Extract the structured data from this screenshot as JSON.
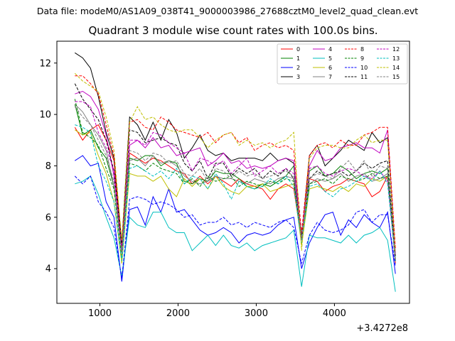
{
  "suptitle": "Data file: modeM0/AS1A09_038T41_9000003986_27688cztM0_level2_quad_clean.evt",
  "chart_data": {
    "type": "line",
    "title": "Quadrant 3 module wise count rates with 100.0s bins.",
    "xlabel": "",
    "ylabel": "",
    "x_offset_label": "+3.4272e8",
    "xlim": [
      450,
      4960
    ],
    "ylim": [
      2.65,
      12.85
    ],
    "xticks": [
      1000,
      2000,
      3000,
      4000
    ],
    "xtick_labels": [
      "1000",
      "2000",
      "3000",
      "4000"
    ],
    "yticks": [
      4,
      6,
      8,
      10,
      12
    ],
    "ytick_labels": [
      "4",
      "6",
      "8",
      "10",
      "12"
    ],
    "grid": false,
    "legend_location": "top-right",
    "x": [
      680,
      780,
      880,
      980,
      1080,
      1180,
      1280,
      1380,
      1480,
      1580,
      1680,
      1780,
      1880,
      1980,
      2080,
      2180,
      2280,
      2380,
      2480,
      2580,
      2680,
      2780,
      2880,
      2980,
      3080,
      3180,
      3280,
      3380,
      3480,
      3580,
      3680,
      3780,
      3880,
      3980,
      4080,
      4180,
      4280,
      4380,
      4480,
      4580,
      4680,
      4780
    ],
    "series": [
      {
        "name": "0",
        "color": "#ff0000",
        "dash": "solid",
        "values": [
          9.5,
          9.0,
          9.4,
          9.6,
          9.0,
          8.2,
          4.8,
          8.5,
          8.3,
          8.1,
          8.3,
          8.2,
          8.0,
          7.8,
          7.7,
          7.3,
          7.6,
          7.3,
          7.6,
          7.4,
          7.2,
          7.5,
          7.3,
          7.2,
          7.1,
          6.7,
          7.1,
          7.3,
          7.1,
          5.1,
          7.5,
          7.4,
          7.0,
          7.2,
          7.3,
          7.5,
          7.4,
          7.3,
          6.8,
          7.0,
          7.6,
          4.2
        ]
      },
      {
        "name": "1",
        "color": "#008000",
        "dash": "solid",
        "values": [
          10.4,
          9.2,
          9.4,
          8.7,
          8.3,
          7.2,
          4.7,
          8.3,
          8.2,
          8.4,
          8.4,
          8.0,
          8.2,
          8.1,
          7.4,
          7.3,
          7.5,
          7.4,
          7.8,
          7.7,
          7.7,
          7.5,
          7.2,
          7.1,
          7.3,
          7.2,
          7.4,
          7.6,
          8.0,
          5.3,
          7.8,
          8.0,
          7.6,
          7.7,
          8.0,
          7.8,
          7.5,
          7.7,
          7.8,
          7.7,
          7.9,
          4.5
        ]
      },
      {
        "name": "2",
        "color": "#0000ff",
        "dash": "solid",
        "values": [
          8.2,
          8.4,
          8.0,
          8.1,
          6.6,
          6.0,
          3.5,
          6.3,
          6.4,
          5.7,
          6.8,
          6.2,
          7.1,
          6.2,
          6.3,
          5.9,
          5.5,
          5.3,
          5.4,
          5.6,
          5.4,
          5.0,
          5.3,
          5.4,
          5.3,
          5.4,
          5.7,
          5.9,
          6.0,
          4.0,
          5.0,
          5.6,
          6.1,
          6.2,
          5.3,
          5.9,
          5.6,
          6.1,
          5.8,
          5.6,
          6.2,
          3.8
        ]
      },
      {
        "name": "3",
        "color": "#000000",
        "dash": "solid",
        "values": [
          12.4,
          12.2,
          11.8,
          10.7,
          9.3,
          8.3,
          5.0,
          9.9,
          9.6,
          9.0,
          9.7,
          9.0,
          9.8,
          9.3,
          8.3,
          8.7,
          9.2,
          8.6,
          8.4,
          8.5,
          8.2,
          8.3,
          8.3,
          8.3,
          8.2,
          8.5,
          8.2,
          8.3,
          8.1,
          5.1,
          8.4,
          8.8,
          8.0,
          8.3,
          8.6,
          9.0,
          8.8,
          8.6,
          9.3,
          8.9,
          9.1,
          4.5
        ]
      },
      {
        "name": "4",
        "color": "#bf00bf",
        "dash": "solid",
        "values": [
          10.8,
          10.9,
          10.7,
          10.2,
          9.2,
          7.6,
          4.9,
          8.8,
          9.0,
          8.7,
          9.1,
          8.7,
          8.8,
          8.4,
          8.5,
          8.6,
          8.7,
          8.0,
          8.2,
          8.5,
          8.1,
          8.2,
          7.9,
          8.0,
          7.9,
          8.0,
          8.2,
          8.3,
          8.2,
          5.2,
          8.0,
          8.6,
          8.2,
          8.3,
          8.7,
          8.8,
          8.9,
          8.7,
          8.7,
          8.5,
          9.4,
          4.6
        ]
      },
      {
        "name": "5",
        "color": "#00bfbf",
        "dash": "solid",
        "values": [
          7.3,
          7.4,
          7.6,
          6.9,
          6.0,
          5.2,
          3.7,
          6.0,
          5.7,
          5.6,
          6.2,
          6.2,
          5.6,
          5.4,
          5.4,
          4.7,
          5.0,
          5.3,
          4.9,
          5.3,
          4.9,
          4.8,
          5.0,
          4.7,
          4.9,
          5.0,
          5.1,
          5.2,
          5.5,
          3.3,
          5.3,
          5.2,
          5.2,
          5.1,
          5.0,
          5.3,
          5.0,
          5.3,
          5.4,
          5.6,
          5.1,
          3.1
        ]
      },
      {
        "name": "6",
        "color": "#bfbf00",
        "dash": "solid",
        "values": [
          9.4,
          9.2,
          9.3,
          8.4,
          7.7,
          6.6,
          4.2,
          7.7,
          7.6,
          7.6,
          7.4,
          7.6,
          7.1,
          6.8,
          7.5,
          7.2,
          7.5,
          7.1,
          7.6,
          7.2,
          7.0,
          6.9,
          7.2,
          7.2,
          7.3,
          7.0,
          7.1,
          7.2,
          7.3,
          4.9,
          7.1,
          7.2,
          7.1,
          7.0,
          7.2,
          7.0,
          7.3,
          7.2,
          7.5,
          7.4,
          7.6,
          4.3
        ]
      },
      {
        "name": "7",
        "color": "#808080",
        "dash": "solid",
        "values": [
          10.4,
          10.1,
          9.6,
          9.2,
          8.6,
          7.2,
          4.6,
          8.2,
          8.3,
          8.0,
          8.4,
          8.1,
          8.2,
          8.0,
          7.6,
          7.4,
          7.3,
          7.4,
          7.6,
          7.5,
          7.5,
          7.4,
          7.3,
          7.5,
          7.4,
          7.3,
          7.5,
          7.6,
          7.5,
          5.1,
          7.3,
          7.5,
          7.4,
          7.5,
          7.7,
          7.4,
          7.6,
          7.7,
          7.4,
          7.5,
          7.7,
          4.3
        ]
      },
      {
        "name": "8",
        "color": "#ff0000",
        "dash": "dashed",
        "values": [
          11.5,
          11.5,
          11.2,
          10.8,
          9.6,
          8.4,
          4.9,
          9.7,
          9.8,
          9.5,
          9.4,
          9.9,
          9.7,
          9.4,
          9.3,
          9.2,
          9.1,
          9.3,
          8.9,
          9.2,
          9.3,
          8.9,
          9.1,
          8.6,
          8.8,
          8.9,
          8.7,
          8.8,
          8.6,
          5.4,
          8.4,
          8.8,
          8.9,
          8.7,
          9.0,
          8.8,
          8.8,
          9.2,
          9.3,
          9.5,
          9.5,
          4.8
        ]
      },
      {
        "name": "9",
        "color": "#008000",
        "dash": "dashed",
        "values": [
          10.6,
          9.3,
          9.1,
          8.8,
          7.9,
          7.1,
          4.4,
          8.1,
          8.0,
          7.8,
          8.1,
          7.9,
          7.8,
          7.7,
          7.3,
          7.5,
          7.2,
          7.6,
          7.4,
          7.5,
          7.6,
          7.2,
          7.4,
          7.3,
          7.2,
          7.4,
          7.3,
          7.5,
          7.4,
          5.1,
          7.3,
          7.4,
          7.5,
          7.3,
          7.6,
          7.5,
          7.4,
          7.5,
          7.7,
          7.5,
          7.6,
          4.4
        ]
      },
      {
        "name": "10",
        "color": "#0000ff",
        "dash": "dashed",
        "values": [
          7.6,
          7.3,
          7.6,
          6.6,
          6.2,
          5.6,
          3.6,
          6.7,
          6.8,
          6.7,
          6.5,
          6.6,
          6.5,
          6.3,
          6.0,
          6.1,
          5.7,
          5.8,
          5.8,
          6.0,
          5.7,
          5.8,
          5.6,
          5.8,
          5.7,
          5.6,
          5.8,
          5.9,
          5.6,
          4.2,
          5.3,
          5.8,
          5.5,
          5.4,
          5.5,
          5.7,
          6.2,
          6.3,
          5.8,
          6.1,
          6.1,
          4.1
        ]
      },
      {
        "name": "11",
        "color": "#000000",
        "dash": "dashed",
        "values": [
          11.2,
          10.6,
          10.2,
          9.8,
          9.0,
          7.8,
          4.9,
          9.4,
          9.3,
          8.9,
          9.0,
          9.1,
          8.9,
          8.8,
          8.1,
          7.8,
          8.2,
          7.5,
          8.1,
          8.1,
          7.6,
          7.9,
          7.7,
          7.9,
          7.5,
          7.8,
          7.6,
          7.9,
          7.5,
          5.2,
          7.5,
          7.8,
          7.6,
          7.7,
          7.8,
          7.6,
          7.8,
          8.1,
          7.9,
          8.1,
          8.2,
          4.3
        ]
      },
      {
        "name": "12",
        "color": "#bf00bf",
        "dash": "dashed",
        "values": [
          10.5,
          10.5,
          10.3,
          9.3,
          8.7,
          7.8,
          4.7,
          9.0,
          9.0,
          8.8,
          9.3,
          9.2,
          8.9,
          8.7,
          8.5,
          7.8,
          8.3,
          8.2,
          8.0,
          8.2,
          7.7,
          8.0,
          8.3,
          7.6,
          7.8,
          8.0,
          7.7,
          7.9,
          7.7,
          5.1,
          7.9,
          8.0,
          7.7,
          7.6,
          7.8,
          7.9,
          7.8,
          7.6,
          7.5,
          7.8,
          7.4,
          4.5
        ]
      },
      {
        "name": "13",
        "color": "#00bfbf",
        "dash": "dashed",
        "values": [
          9.6,
          9.5,
          9.3,
          8.0,
          7.4,
          6.6,
          4.3,
          7.9,
          8.0,
          7.8,
          7.6,
          7.8,
          7.5,
          7.9,
          7.3,
          7.6,
          7.5,
          7.1,
          7.7,
          7.3,
          6.7,
          7.4,
          7.2,
          7.1,
          7.2,
          7.5,
          7.3,
          7.6,
          7.2,
          5.0,
          7.2,
          7.3,
          7.0,
          6.8,
          7.1,
          7.2,
          7.4,
          7.6,
          7.4,
          7.8,
          7.3,
          4.3
        ]
      },
      {
        "name": "14",
        "color": "#bfbf00",
        "dash": "dashed",
        "values": [
          11.6,
          11.3,
          11.1,
          10.9,
          9.9,
          8.6,
          5.1,
          9.7,
          10.3,
          9.8,
          9.9,
          9.6,
          9.4,
          9.3,
          9.4,
          9.4,
          9.1,
          8.7,
          9.0,
          9.2,
          9.3,
          8.8,
          9.0,
          8.8,
          8.9,
          8.7,
          8.9,
          9.0,
          9.3,
          4.7,
          8.3,
          8.7,
          8.8,
          8.8,
          8.7,
          8.7,
          9.0,
          9.2,
          8.9,
          9.0,
          9.0,
          4.6
        ]
      },
      {
        "name": "15",
        "color": "#808080",
        "dash": "dashed",
        "values": [
          10.3,
          9.9,
          9.6,
          9.0,
          8.4,
          7.4,
          4.6,
          8.6,
          8.5,
          8.2,
          8.5,
          8.4,
          8.1,
          8.2,
          7.7,
          7.6,
          7.9,
          7.4,
          7.9,
          7.8,
          7.5,
          7.8,
          7.6,
          7.7,
          7.5,
          7.6,
          7.7,
          7.8,
          7.6,
          5.2,
          7.5,
          7.7,
          7.6,
          7.5,
          7.9,
          8.2,
          7.8,
          8.2,
          7.6,
          8.0,
          7.9,
          4.4
        ]
      }
    ]
  }
}
